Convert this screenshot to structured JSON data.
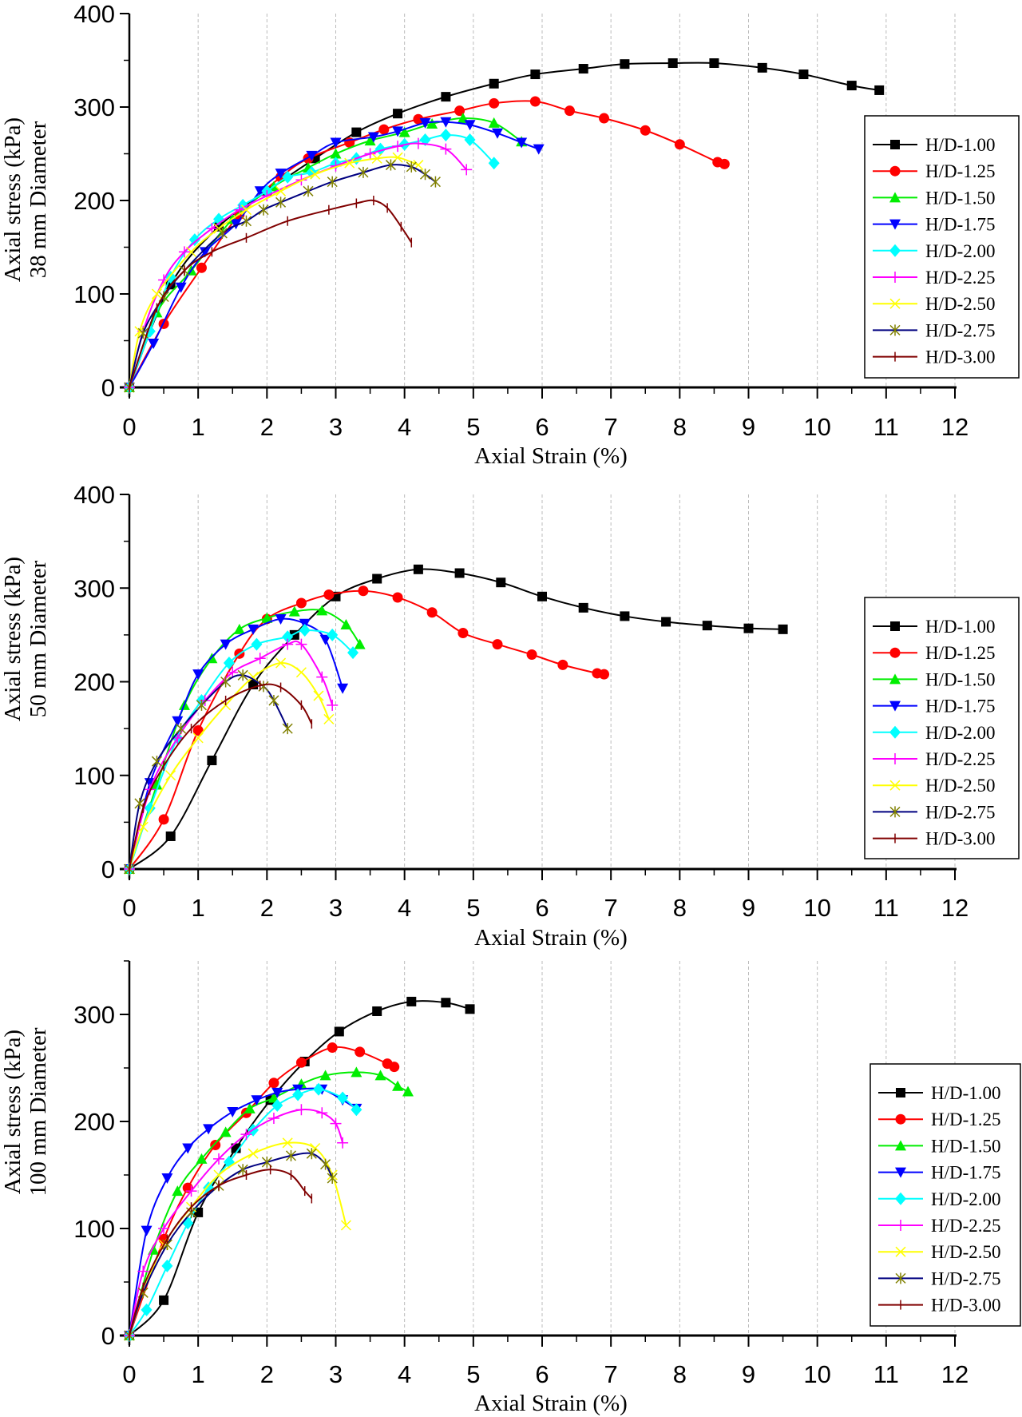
{
  "chart_data": [
    {
      "type": "line",
      "ylabel": [
        "Axial stress (kPa)",
        "38 mm Diameter"
      ],
      "xlabel": "Axial Strain (%)",
      "xlim": [
        0,
        12
      ],
      "ylim": [
        0,
        400
      ],
      "xticks": [
        0,
        1,
        2,
        3,
        4,
        5,
        6,
        7,
        8,
        9,
        10,
        11,
        12
      ],
      "yticks": [
        0,
        100,
        200,
        300,
        400
      ],
      "grid": "vertical dashed",
      "legend": "right",
      "series": [
        {
          "name": "H/D-1.00",
          "color": "#000000",
          "marker": "square",
          "x": [
            0,
            0.6,
            1.3,
            2.0,
            2.7,
            3.3,
            3.9,
            4.6,
            5.3,
            5.9,
            6.6,
            7.2,
            7.9,
            8.5,
            9.2,
            9.8,
            10.5,
            10.9
          ],
          "y": [
            0,
            110,
            172,
            210,
            245,
            273,
            293,
            311,
            325,
            335,
            341,
            346,
            347,
            347,
            342,
            335,
            323,
            318
          ]
        },
        {
          "name": "H/D-1.25",
          "color": "#ff0000",
          "marker": "circle",
          "x": [
            0,
            0.5,
            1.05,
            1.6,
            2.2,
            2.6,
            3.2,
            3.7,
            4.2,
            4.8,
            5.3,
            5.9,
            6.4,
            6.9,
            7.5,
            8.0,
            8.55,
            8.65
          ],
          "y": [
            0,
            68,
            128,
            185,
            225,
            245,
            262,
            276,
            287,
            296,
            304,
            306,
            296,
            288,
            275,
            260,
            241,
            239
          ]
        },
        {
          "name": "H/D-1.50",
          "color": "#00ee00",
          "marker": "triangle-up",
          "x": [
            0,
            0.4,
            0.9,
            1.5,
            2.1,
            2.6,
            3.0,
            3.5,
            4.0,
            4.4,
            4.85,
            5.3,
            5.7
          ],
          "y": [
            0,
            80,
            125,
            180,
            215,
            235,
            250,
            264,
            273,
            282,
            288,
            283,
            263
          ]
        },
        {
          "name": "H/D-1.75",
          "color": "#0000ff",
          "marker": "triangle-down",
          "x": [
            0,
            0.35,
            0.75,
            1.1,
            1.55,
            1.9,
            2.2,
            2.65,
            3.0,
            3.55,
            3.9,
            4.3,
            4.6,
            4.95,
            5.35,
            5.7,
            5.95
          ],
          "y": [
            0,
            47,
            107,
            145,
            175,
            210,
            229,
            248,
            262,
            268,
            274,
            283,
            284,
            281,
            272,
            262,
            255
          ]
        },
        {
          "name": "H/D-2.00",
          "color": "#00ffff",
          "marker": "diamond",
          "x": [
            0,
            0.3,
            0.6,
            0.95,
            1.3,
            1.65,
            2.0,
            2.3,
            2.65,
            3.0,
            3.3,
            3.65,
            4.0,
            4.3,
            4.6,
            4.95,
            5.3
          ],
          "y": [
            0,
            60,
            118,
            158,
            180,
            195,
            210,
            225,
            230,
            240,
            245,
            255,
            260,
            265,
            270,
            265,
            240
          ]
        },
        {
          "name": "H/D-2.25",
          "color": "#ff00ff",
          "marker": "plus",
          "x": [
            0,
            0.2,
            0.5,
            0.8,
            1.2,
            1.6,
            2.0,
            2.5,
            3.0,
            3.5,
            3.9,
            4.2,
            4.6,
            4.9
          ],
          "y": [
            0,
            60,
            115,
            145,
            170,
            190,
            205,
            222,
            237,
            250,
            258,
            261,
            255,
            233
          ]
        },
        {
          "name": "H/D-2.50",
          "color": "#ffff00",
          "marker": "x",
          "x": [
            0,
            0.15,
            0.4,
            0.9,
            1.3,
            1.7,
            2.2,
            2.7,
            3.2,
            3.6,
            3.9,
            4.2
          ],
          "y": [
            0,
            60,
            100,
            145,
            170,
            190,
            210,
            228,
            240,
            245,
            246,
            238
          ]
        },
        {
          "name": "H/D-2.75",
          "color": "#000080",
          "marker_color": "#808000",
          "marker": "asterisk",
          "x": [
            0,
            0.2,
            0.5,
            0.8,
            1.35,
            1.7,
            1.95,
            2.2,
            2.6,
            2.95,
            3.4,
            3.8,
            4.1,
            4.3,
            4.45
          ],
          "y": [
            0,
            58,
            97,
            125,
            165,
            178,
            190,
            198,
            210,
            220,
            230,
            238,
            236,
            228,
            220
          ]
        },
        {
          "name": "H/D-3.00",
          "color": "#800000",
          "marker": "vbar",
          "x": [
            0,
            0.4,
            0.8,
            1.2,
            1.7,
            2.3,
            2.9,
            3.3,
            3.55,
            3.75,
            3.95,
            4.1
          ],
          "y": [
            0,
            85,
            125,
            145,
            160,
            178,
            190,
            197,
            200,
            192,
            172,
            155
          ]
        }
      ]
    },
    {
      "type": "line",
      "ylabel": [
        "Axial stress (kPa)",
        "50 mm Diameter"
      ],
      "xlabel": "Axial Strain (%)",
      "xlim": [
        0,
        12
      ],
      "ylim": [
        0,
        400
      ],
      "xticks": [
        0,
        1,
        2,
        3,
        4,
        5,
        6,
        7,
        8,
        9,
        10,
        11,
        12
      ],
      "yticks": [
        0,
        100,
        200,
        300,
        400
      ],
      "grid": "vertical dashed",
      "legend": "right",
      "series": [
        {
          "name": "H/D-1.00",
          "color": "#000000",
          "marker": "square",
          "x": [
            0,
            0.6,
            1.2,
            1.8,
            2.4,
            3.0,
            3.6,
            4.2,
            4.8,
            5.4,
            6.0,
            6.6,
            7.2,
            7.8,
            8.4,
            9.0,
            9.5
          ],
          "y": [
            0,
            35,
            116,
            197,
            250,
            291,
            310,
            320,
            316,
            306,
            291,
            279,
            270,
            264,
            260,
            257,
            256
          ]
        },
        {
          "name": "H/D-1.25",
          "color": "#ff0000",
          "marker": "circle",
          "x": [
            0,
            0.5,
            1.0,
            1.6,
            2.0,
            2.5,
            2.9,
            3.4,
            3.9,
            4.4,
            4.85,
            5.35,
            5.85,
            6.3,
            6.8,
            6.9
          ],
          "y": [
            0,
            53,
            148,
            230,
            267,
            284,
            293,
            297,
            290,
            274,
            252,
            240,
            229,
            218,
            209,
            208
          ]
        },
        {
          "name": "H/D-1.50",
          "color": "#00ee00",
          "marker": "triangle-up",
          "x": [
            0,
            0.4,
            0.8,
            1.2,
            1.6,
            2.0,
            2.4,
            2.8,
            3.15,
            3.35
          ],
          "y": [
            0,
            90,
            175,
            225,
            256,
            268,
            275,
            276,
            261,
            240
          ]
        },
        {
          "name": "H/D-1.75",
          "color": "#0000ff",
          "marker": "triangle-down",
          "x": [
            0,
            0.3,
            0.7,
            1.0,
            1.4,
            1.8,
            2.2,
            2.55,
            2.85,
            3.1
          ],
          "y": [
            0,
            92,
            158,
            208,
            240,
            256,
            267,
            262,
            245,
            193
          ]
        },
        {
          "name": "H/D-2.00",
          "color": "#00ffff",
          "marker": "diamond",
          "x": [
            0,
            0.3,
            0.7,
            1.05,
            1.45,
            1.85,
            2.3,
            2.55,
            2.95,
            3.25
          ],
          "y": [
            0,
            65,
            140,
            180,
            220,
            240,
            248,
            255,
            250,
            231
          ]
        },
        {
          "name": "H/D-2.25",
          "color": "#ff00ff",
          "marker": "plus",
          "x": [
            0,
            0.3,
            0.7,
            1.1,
            1.5,
            1.9,
            2.3,
            2.5,
            2.8,
            2.95
          ],
          "y": [
            0,
            85,
            140,
            180,
            210,
            225,
            240,
            240,
            205,
            175
          ]
        },
        {
          "name": "H/D-2.50",
          "color": "#ffff00",
          "marker": "x",
          "x": [
            0,
            0.2,
            0.6,
            1.0,
            1.4,
            1.8,
            2.2,
            2.5,
            2.75,
            2.9
          ],
          "y": [
            0,
            45,
            100,
            140,
            175,
            205,
            220,
            210,
            185,
            160
          ]
        },
        {
          "name": "H/D-2.75",
          "color": "#000080",
          "marker_color": "#808000",
          "marker": "asterisk",
          "x": [
            0,
            0.15,
            0.4,
            0.75,
            1.05,
            1.4,
            1.65,
            1.95,
            2.1,
            2.3
          ],
          "y": [
            0,
            70,
            115,
            150,
            175,
            200,
            207,
            195,
            180,
            150
          ]
        },
        {
          "name": "H/D-3.00",
          "color": "#800000",
          "marker": "vbar",
          "x": [
            0,
            0.2,
            0.5,
            0.9,
            1.4,
            1.9,
            2.2,
            2.5,
            2.65
          ],
          "y": [
            0,
            65,
            110,
            150,
            180,
            196,
            194,
            175,
            155
          ]
        }
      ]
    },
    {
      "type": "line",
      "ylabel": [
        "Axial stress (kPa)",
        "100 mm Diameter"
      ],
      "xlabel": "Axial Strain (%)",
      "xlim": [
        0,
        12
      ],
      "ylim": [
        0,
        350
      ],
      "xticks": [
        0,
        1,
        2,
        3,
        4,
        5,
        6,
        7,
        8,
        9,
        10,
        11,
        12
      ],
      "yticks": [
        0,
        100,
        200,
        300
      ],
      "grid": "vertical dashed",
      "legend": "right",
      "series": [
        {
          "name": "H/D-1.00",
          "color": "#000000",
          "marker": "square",
          "x": [
            0,
            0.5,
            1.0,
            1.55,
            2.05,
            2.55,
            3.05,
            3.6,
            4.1,
            4.6,
            4.95
          ],
          "y": [
            0,
            33,
            115,
            175,
            220,
            256,
            284,
            303,
            312,
            311,
            305
          ]
        },
        {
          "name": "H/D-1.25",
          "color": "#ff0000",
          "marker": "circle",
          "x": [
            0,
            0.5,
            0.85,
            1.25,
            1.7,
            2.1,
            2.5,
            2.95,
            3.35,
            3.75,
            3.85
          ],
          "y": [
            0,
            90,
            138,
            178,
            208,
            236,
            255,
            269,
            265,
            254,
            251
          ]
        },
        {
          "name": "H/D-1.50",
          "color": "#00ee00",
          "marker": "triangle-up",
          "x": [
            0,
            0.35,
            0.7,
            1.05,
            1.4,
            1.75,
            2.1,
            2.5,
            2.85,
            3.3,
            3.65,
            3.9,
            4.05
          ],
          "y": [
            0,
            80,
            135,
            165,
            190,
            212,
            222,
            235,
            243,
            246,
            243,
            233,
            228
          ]
        },
        {
          "name": "H/D-1.75",
          "color": "#0000ff",
          "marker": "triangle-down",
          "x": [
            0,
            0.25,
            0.55,
            0.85,
            1.15,
            1.5,
            1.85,
            2.15,
            2.45,
            2.8,
            3.1,
            3.3
          ],
          "y": [
            0,
            98,
            147,
            175,
            193,
            209,
            220,
            227,
            230,
            230,
            220,
            212
          ]
        },
        {
          "name": "H/D-2.00",
          "color": "#00ffff",
          "marker": "diamond",
          "x": [
            0,
            0.25,
            0.55,
            0.85,
            1.15,
            1.45,
            1.8,
            2.15,
            2.45,
            2.75,
            3.1,
            3.3
          ],
          "y": [
            0,
            24,
            65,
            105,
            138,
            162,
            192,
            215,
            225,
            230,
            222,
            211
          ]
        },
        {
          "name": "H/D-2.25",
          "color": "#ff00ff",
          "marker": "plus",
          "x": [
            0,
            0.2,
            0.5,
            0.9,
            1.3,
            1.7,
            2.1,
            2.5,
            2.8,
            3.0,
            3.1
          ],
          "y": [
            0,
            60,
            100,
            135,
            165,
            188,
            203,
            211,
            208,
            198,
            180
          ]
        },
        {
          "name": "H/D-2.50",
          "color": "#ffff00",
          "marker": "x",
          "x": [
            0,
            0.2,
            0.5,
            0.9,
            1.3,
            1.8,
            2.3,
            2.7,
            2.95,
            3.15
          ],
          "y": [
            0,
            40,
            85,
            120,
            150,
            170,
            180,
            175,
            150,
            103
          ]
        },
        {
          "name": "H/D-2.75",
          "color": "#000080",
          "marker_color": "#808000",
          "marker": "asterisk",
          "x": [
            0,
            0.2,
            0.55,
            0.9,
            1.3,
            1.65,
            2.0,
            2.35,
            2.65,
            2.85,
            2.95
          ],
          "y": [
            0,
            40,
            85,
            115,
            140,
            155,
            162,
            168,
            170,
            160,
            147
          ]
        },
        {
          "name": "H/D-3.00",
          "color": "#800000",
          "marker": "vbar",
          "x": [
            0,
            0.2,
            0.55,
            0.9,
            1.3,
            1.7,
            2.05,
            2.35,
            2.55,
            2.65
          ],
          "y": [
            0,
            45,
            90,
            120,
            140,
            150,
            155,
            150,
            135,
            128
          ]
        }
      ]
    }
  ]
}
